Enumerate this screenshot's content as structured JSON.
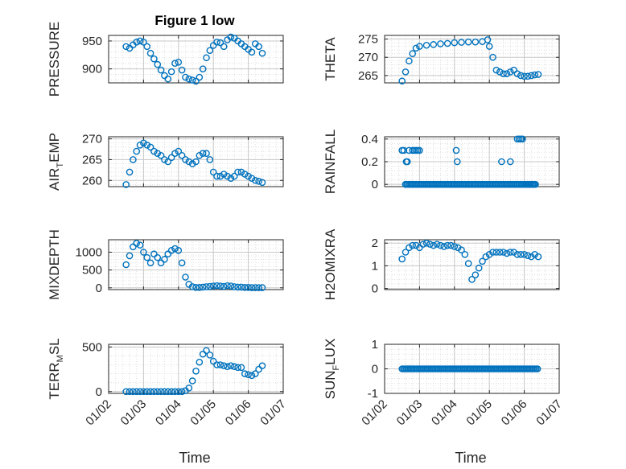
{
  "figure": {
    "title": "Figure 1 low"
  },
  "colors": {
    "marker": "#0072BD",
    "axis": "#262626",
    "grid": "#d9d9d9"
  },
  "chart_data": [
    {
      "type": "scatter",
      "ylabel": "PRESSURE",
      "ylabel_parts": [
        "PRESSURE"
      ],
      "yticks": [
        900,
        950
      ],
      "ylim": [
        875,
        960
      ],
      "x": [
        2.5,
        2.6,
        2.7,
        2.8,
        2.9,
        3.0,
        3.1,
        3.2,
        3.3,
        3.4,
        3.5,
        3.6,
        3.7,
        3.8,
        3.9,
        4.0,
        4.1,
        4.2,
        4.3,
        4.4,
        4.5,
        4.6,
        4.7,
        4.8,
        4.9,
        5.0,
        5.1,
        5.2,
        5.3,
        5.4,
        5.5,
        5.6,
        5.7,
        5.8,
        5.9,
        6.0,
        6.1,
        6.2,
        6.3,
        6.4
      ],
      "y": [
        940,
        937,
        943,
        948,
        950,
        948,
        940,
        928,
        918,
        908,
        898,
        888,
        882,
        895,
        910,
        912,
        898,
        885,
        882,
        880,
        878,
        885,
        900,
        920,
        933,
        942,
        948,
        947,
        940,
        952,
        957,
        955,
        950,
        945,
        940,
        935,
        930,
        945,
        940,
        928
      ]
    },
    {
      "type": "scatter",
      "ylabel": "THETA",
      "ylabel_parts": [
        "THETA"
      ],
      "yticks": [
        265,
        270,
        275
      ],
      "ylim": [
        263,
        276
      ],
      "x": [
        2.5,
        2.6,
        2.7,
        2.8,
        2.9,
        3.0,
        3.2,
        3.4,
        3.6,
        3.8,
        4.0,
        4.2,
        4.4,
        4.6,
        4.8,
        4.95,
        5.0,
        5.1,
        5.2,
        5.3,
        5.4,
        5.5,
        5.6,
        5.7,
        5.8,
        5.9,
        6.0,
        6.1,
        6.2,
        6.3,
        6.4
      ],
      "y": [
        263.5,
        266,
        269,
        271,
        272.5,
        273,
        273.3,
        273.5,
        273.7,
        273.8,
        274,
        274.1,
        274.2,
        274.2,
        274.3,
        274.8,
        273,
        270,
        266.5,
        266,
        265.5,
        265.5,
        266,
        266.5,
        265.5,
        265,
        264.8,
        264.8,
        265,
        265.2,
        265.3
      ]
    },
    {
      "type": "scatter",
      "ylabel": "AIR_TEMP",
      "ylabel_parts": [
        "AIR",
        "T",
        "EMP"
      ],
      "yticks": [
        260,
        265,
        270
      ],
      "ylim": [
        258.5,
        270.5
      ],
      "x": [
        2.5,
        2.6,
        2.7,
        2.8,
        2.9,
        3.0,
        3.1,
        3.2,
        3.3,
        3.4,
        3.5,
        3.6,
        3.7,
        3.8,
        3.9,
        4.0,
        4.1,
        4.2,
        4.3,
        4.4,
        4.5,
        4.6,
        4.7,
        4.8,
        4.9,
        5.0,
        5.1,
        5.2,
        5.3,
        5.4,
        5.5,
        5.6,
        5.7,
        5.8,
        5.9,
        6.0,
        6.1,
        6.2,
        6.3,
        6.4
      ],
      "y": [
        259,
        262,
        265,
        267,
        268.5,
        269,
        268.5,
        268,
        267,
        266.5,
        266,
        265,
        264.5,
        265.5,
        266.5,
        267,
        266,
        265,
        264.5,
        264,
        264.5,
        266,
        266.5,
        266.5,
        265,
        262,
        261,
        261,
        261.5,
        261,
        260.5,
        261,
        262,
        262,
        261.5,
        261,
        260.5,
        260,
        259.8,
        259.5
      ]
    },
    {
      "type": "scatter",
      "ylabel": "RAINFALL",
      "ylabel_parts": [
        "RAINFALL"
      ],
      "yticks": [
        0,
        0.2,
        0.4
      ],
      "ylim": [
        -0.02,
        0.42
      ],
      "x": [
        2.5,
        2.55,
        2.6,
        2.62,
        2.65,
        2.7,
        2.8,
        2.85,
        2.9,
        2.95,
        3.0,
        4.05,
        4.08,
        5.35,
        5.6,
        5.8,
        5.85,
        5.9,
        5.95,
        6.0,
        6.05,
        6.1,
        6.15,
        6.2,
        6.25,
        6.3
      ],
      "y": [
        0.3,
        0.3,
        0,
        0.2,
        0.2,
        0.3,
        0.3,
        0.3,
        0.3,
        0.3,
        0.3,
        0.3,
        0.2,
        0.2,
        0.2,
        0.4,
        0.4,
        0.4,
        0.4,
        0,
        0,
        0,
        0,
        0,
        0,
        0
      ],
      "zero_from": 2.6,
      "zero_to": 6.35
    },
    {
      "type": "scatter",
      "ylabel": "MIXDEPTH",
      "ylabel_parts": [
        "MIXDEPTH"
      ],
      "yticks": [
        0,
        500,
        1000
      ],
      "ylim": [
        -50,
        1350
      ],
      "x": [
        2.5,
        2.6,
        2.7,
        2.8,
        2.9,
        3.0,
        3.1,
        3.2,
        3.3,
        3.4,
        3.5,
        3.6,
        3.7,
        3.8,
        3.9,
        4.0,
        4.1,
        4.2,
        4.3,
        4.4,
        4.5,
        4.6,
        4.7,
        4.8,
        4.9,
        5.0,
        5.1,
        5.2,
        5.3,
        5.4,
        5.5,
        5.6,
        5.7,
        5.8,
        5.9,
        6.0,
        6.1,
        6.2,
        6.3,
        6.4
      ],
      "y": [
        650,
        900,
        1150,
        1250,
        1200,
        1000,
        850,
        700,
        950,
        850,
        700,
        800,
        950,
        1050,
        1100,
        1050,
        700,
        300,
        100,
        30,
        10,
        10,
        20,
        30,
        40,
        50,
        60,
        50,
        40,
        60,
        50,
        30,
        20,
        20,
        10,
        10,
        5,
        5,
        5,
        5
      ]
    },
    {
      "type": "scatter",
      "ylabel": "H2OMIXRA",
      "ylabel_parts": [
        "H2OMIXRA"
      ],
      "yticks": [
        0,
        1,
        2
      ],
      "ylim": [
        -0.05,
        2.15
      ],
      "x": [
        2.5,
        2.6,
        2.7,
        2.8,
        2.9,
        3.0,
        3.1,
        3.2,
        3.3,
        3.4,
        3.5,
        3.6,
        3.7,
        3.8,
        3.9,
        4.0,
        4.1,
        4.2,
        4.3,
        4.4,
        4.5,
        4.6,
        4.7,
        4.8,
        4.9,
        5.0,
        5.1,
        5.2,
        5.3,
        5.4,
        5.5,
        5.6,
        5.7,
        5.8,
        5.9,
        6.0,
        6.1,
        6.2,
        6.3,
        6.4
      ],
      "y": [
        1.3,
        1.6,
        1.8,
        1.9,
        1.9,
        1.8,
        1.95,
        2.0,
        1.95,
        1.9,
        1.95,
        1.9,
        1.85,
        1.9,
        1.9,
        1.85,
        1.8,
        1.7,
        1.5,
        1.1,
        0.4,
        0.6,
        0.9,
        1.2,
        1.4,
        1.5,
        1.6,
        1.6,
        1.6,
        1.6,
        1.55,
        1.6,
        1.6,
        1.5,
        1.5,
        1.5,
        1.45,
        1.4,
        1.5,
        1.4
      ]
    },
    {
      "type": "scatter",
      "ylabel": "TERR_MSL",
      "ylabel_parts": [
        "TERR",
        "M",
        "SL"
      ],
      "yticks": [
        0,
        500
      ],
      "ylim": [
        -20,
        530
      ],
      "x": [
        2.5,
        2.6,
        2.7,
        2.8,
        2.9,
        3.0,
        3.1,
        3.2,
        3.3,
        3.4,
        3.5,
        3.6,
        3.7,
        3.8,
        3.9,
        4.0,
        4.1,
        4.2,
        4.3,
        4.4,
        4.5,
        4.6,
        4.7,
        4.8,
        4.9,
        5.0,
        5.1,
        5.2,
        5.3,
        5.4,
        5.5,
        5.6,
        5.7,
        5.8,
        5.9,
        6.0,
        6.1,
        6.2,
        6.3,
        6.4
      ],
      "y": [
        0,
        0,
        0,
        0,
        0,
        0,
        0,
        0,
        0,
        0,
        0,
        0,
        0,
        0,
        0,
        0,
        0,
        10,
        40,
        120,
        230,
        330,
        420,
        460,
        410,
        340,
        300,
        300,
        290,
        280,
        290,
        280,
        270,
        270,
        200,
        190,
        180,
        200,
        250,
        290
      ]
    },
    {
      "type": "scatter",
      "ylabel": "SUN_FLUX",
      "ylabel_parts": [
        "SUN",
        "F",
        "LUX"
      ],
      "yticks": [
        -1,
        0,
        1
      ],
      "ylim": [
        -1,
        1
      ],
      "x": [],
      "y": [],
      "zero_from": 2.5,
      "zero_to": 6.4
    }
  ],
  "xaxis": {
    "tick_labels": [
      "01/02",
      "01/03",
      "01/04",
      "01/05",
      "01/06",
      "01/07"
    ],
    "tick_values": [
      2,
      3,
      4,
      5,
      6,
      7
    ],
    "xlim": [
      2,
      7
    ],
    "xlabel": "Time"
  }
}
